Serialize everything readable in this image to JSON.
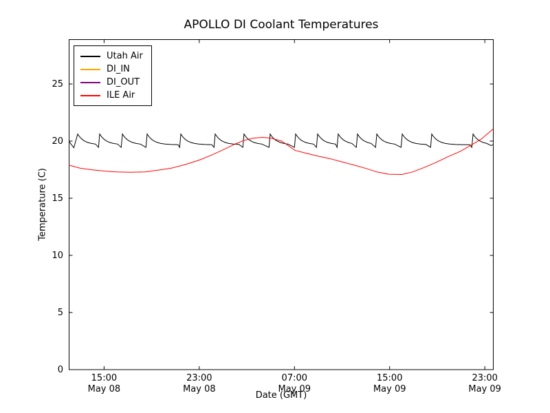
{
  "chart_data": {
    "type": "line",
    "title": "APOLLO DI Coolant Temperatures",
    "xlabel": "Date (GMT)",
    "ylabel": "Temperature (C)",
    "ylim": [
      0,
      28.9
    ],
    "yticks": [
      0,
      5,
      10,
      15,
      20,
      25
    ],
    "x_unit": "hours from plot left edge (~12:00 GMT May 08)",
    "xticks": [
      {
        "t": 2.97,
        "time": "15:00",
        "date": "May 08"
      },
      {
        "t": 10.97,
        "time": "23:00",
        "date": "May 08"
      },
      {
        "t": 18.97,
        "time": "07:00",
        "date": "May 09"
      },
      {
        "t": 26.97,
        "time": "15:00",
        "date": "May 09"
      },
      {
        "t": 34.97,
        "time": "23:00",
        "date": "May 09"
      }
    ],
    "grid": false,
    "legend_position": "upper left",
    "series": [
      {
        "name": "Utah Air",
        "color": "#000000",
        "shape": "sawtooth",
        "sawtooth": {
          "start": [
            0,
            20.0
          ],
          "predip": [
            0.43,
            19.42
          ],
          "peak_value": 20.62,
          "decay_floor": 19.68,
          "decay_amplitude": 0.94,
          "decay_tau_h": 0.55,
          "dip_value": 19.45,
          "peak_times_h": [
            0.75,
            2.6,
            4.51,
            6.59,
            9.42,
            12.31,
            14.73,
            16.93,
            19.07,
            20.92,
            22.65,
            24.27,
            25.89,
            28.03,
            30.51,
            33.98
          ],
          "end_points": [
            [
              35.5,
              19.6
            ],
            [
              35.65,
              19.7
            ]
          ]
        }
      },
      {
        "name": "DI_IN",
        "color": "#ffa500",
        "points": []
      },
      {
        "name": "DI_OUT",
        "color": "#800080",
        "points": []
      },
      {
        "name": "ILE Air",
        "color": "#ff0000",
        "points": [
          [
            0,
            17.9
          ],
          [
            1,
            17.62
          ],
          [
            2,
            17.48
          ],
          [
            3,
            17.38
          ],
          [
            4,
            17.3
          ],
          [
            5.2,
            17.27
          ],
          [
            6.4,
            17.3
          ],
          [
            7.5,
            17.45
          ],
          [
            8.7,
            17.65
          ],
          [
            9.8,
            17.95
          ],
          [
            11,
            18.35
          ],
          [
            12,
            18.78
          ],
          [
            13,
            19.25
          ],
          [
            14,
            19.75
          ],
          [
            14.7,
            20.05
          ],
          [
            15.5,
            20.25
          ],
          [
            16.3,
            20.33
          ],
          [
            17,
            20.25
          ],
          [
            17.9,
            20.0
          ],
          [
            19,
            19.2
          ],
          [
            19.9,
            18.95
          ],
          [
            20.9,
            18.7
          ],
          [
            22,
            18.45
          ],
          [
            22.9,
            18.2
          ],
          [
            24,
            17.9
          ],
          [
            25,
            17.6
          ],
          [
            25.9,
            17.3
          ],
          [
            26.9,
            17.1
          ],
          [
            28,
            17.08
          ],
          [
            28.9,
            17.3
          ],
          [
            29.9,
            17.7
          ],
          [
            30.9,
            18.15
          ],
          [
            31.9,
            18.65
          ],
          [
            32.9,
            19.1
          ],
          [
            34,
            19.75
          ],
          [
            34.7,
            20.2
          ],
          [
            35.2,
            20.65
          ],
          [
            35.65,
            21.05
          ]
        ]
      }
    ]
  }
}
